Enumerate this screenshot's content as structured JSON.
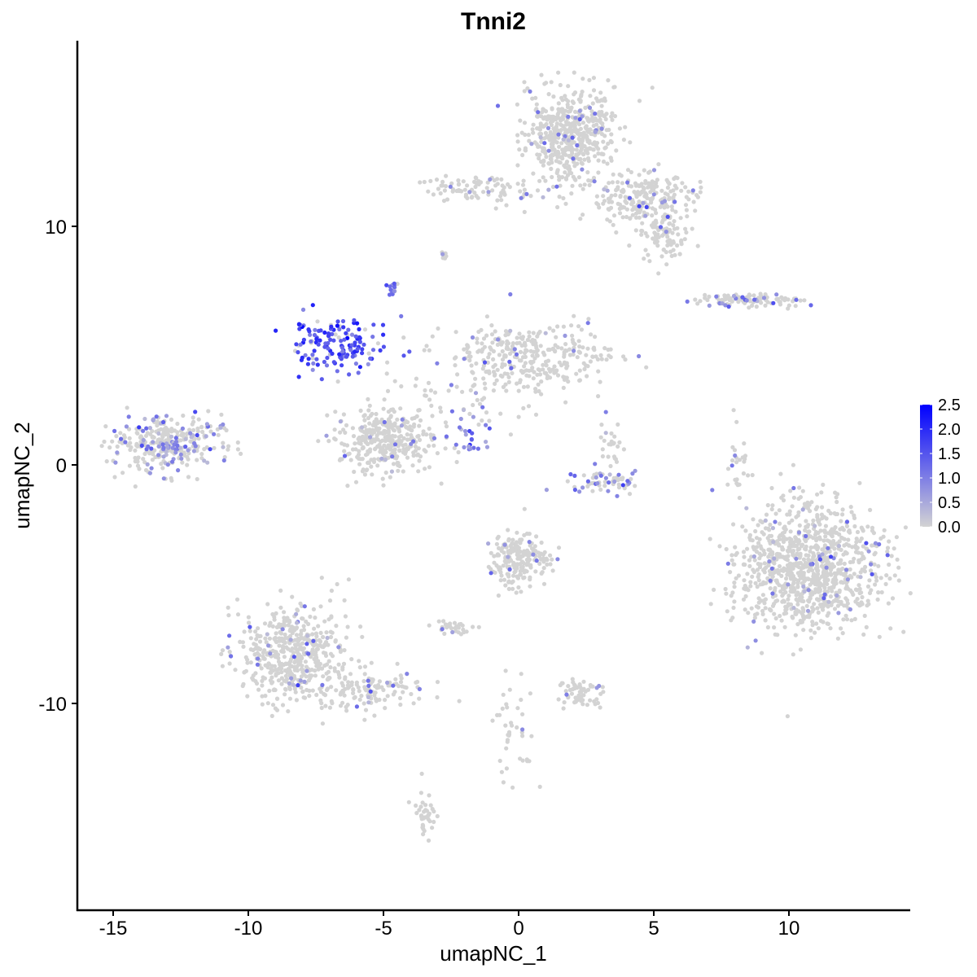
{
  "chart_data": {
    "type": "scatter",
    "title": "Tnni2",
    "xlabel": "umapNC_1",
    "ylabel": "umapNC_2",
    "xlim": [
      -16.3,
      14.4
    ],
    "ylim": [
      -18.5,
      17.8
    ],
    "xticks": [
      -15,
      -10,
      -5,
      0,
      5,
      10
    ],
    "yticks": [
      -10,
      0,
      10
    ],
    "xtick_labels": [
      "-15",
      "-10",
      "-5",
      "0",
      "5",
      "10"
    ],
    "ytick_labels": [
      "-10",
      "0",
      "10"
    ],
    "grid": false,
    "color_low": "#D3D3D3",
    "color_high": "#0000FF",
    "legend": {
      "placement": "right",
      "range": [
        0,
        2.5
      ],
      "ticks": [
        "0.0",
        "0.5",
        "1.0",
        "1.5",
        "2.0",
        "2.5"
      ]
    },
    "clusters": [
      {
        "center": [
          1.9,
          13.8
        ],
        "sd": [
          0.8,
          1.0
        ],
        "n": 520,
        "expr_frac": 0.06,
        "expr_mean": 0.8
      },
      {
        "center": [
          4.6,
          11.2
        ],
        "sd": [
          0.9,
          0.6
        ],
        "n": 220,
        "expr_frac": 0.06,
        "expr_mean": 0.8
      },
      {
        "center": [
          5.4,
          9.6
        ],
        "sd": [
          0.5,
          0.5
        ],
        "n": 90,
        "expr_frac": 0.06,
        "expr_mean": 0.8
      },
      {
        "center": [
          -1.5,
          11.6
        ],
        "sd": [
          1.0,
          0.3
        ],
        "n": 90,
        "expr_frac": 0.06,
        "expr_mean": 0.8
      },
      {
        "center": [
          -13.0,
          0.9
        ],
        "sd": [
          1.0,
          0.6
        ],
        "n": 330,
        "expr_frac": 0.25,
        "expr_mean": 0.8
      },
      {
        "center": [
          -6.6,
          5.0
        ],
        "sd": [
          0.9,
          0.6
        ],
        "n": 150,
        "expr_frac": 0.85,
        "expr_mean": 1.6
      },
      {
        "center": [
          -4.6,
          7.3
        ],
        "sd": [
          0.15,
          0.2
        ],
        "n": 15,
        "expr_frac": 0.8,
        "expr_mean": 1.0
      },
      {
        "center": [
          -4.9,
          1.0
        ],
        "sd": [
          0.9,
          0.7
        ],
        "n": 340,
        "expr_frac": 0.03,
        "expr_mean": 0.8
      },
      {
        "center": [
          0.6,
          4.5
        ],
        "sd": [
          1.6,
          0.7
        ],
        "n": 300,
        "expr_frac": 0.05,
        "expr_mean": 0.8
      },
      {
        "center": [
          -1.9,
          1.3
        ],
        "sd": [
          0.5,
          0.4
        ],
        "n": 25,
        "expr_frac": 0.9,
        "expr_mean": 1.0
      },
      {
        "center": [
          10.7,
          -4.3
        ],
        "sd": [
          1.3,
          1.3
        ],
        "n": 1000,
        "expr_frac": 0.05,
        "expr_mean": 0.8
      },
      {
        "center": [
          -8.3,
          -8.0
        ],
        "sd": [
          1.0,
          1.1
        ],
        "n": 500,
        "expr_frac": 0.05,
        "expr_mean": 0.8
      },
      {
        "center": [
          -5.5,
          -9.5
        ],
        "sd": [
          1.0,
          0.4
        ],
        "n": 120,
        "expr_frac": 0.08,
        "expr_mean": 0.8
      },
      {
        "center": [
          0.0,
          -4.0
        ],
        "sd": [
          0.6,
          0.6
        ],
        "n": 200,
        "expr_frac": 0.04,
        "expr_mean": 0.8
      },
      {
        "center": [
          3.2,
          -0.7
        ],
        "sd": [
          0.7,
          0.2
        ],
        "n": 60,
        "expr_frac": 0.4,
        "expr_mean": 1.0
      },
      {
        "center": [
          3.4,
          0.7
        ],
        "sd": [
          0.3,
          0.4
        ],
        "n": 25,
        "expr_frac": 0.05,
        "expr_mean": 0.8
      },
      {
        "center": [
          8.5,
          6.9
        ],
        "sd": [
          1.0,
          0.15
        ],
        "n": 110,
        "expr_frac": 0.15,
        "expr_mean": 0.9
      },
      {
        "center": [
          2.2,
          -9.5
        ],
        "sd": [
          0.4,
          0.3
        ],
        "n": 60,
        "expr_frac": 0.05,
        "expr_mean": 0.8
      },
      {
        "center": [
          -3.5,
          -14.6
        ],
        "sd": [
          0.2,
          0.5
        ],
        "n": 40,
        "expr_frac": 0.05,
        "expr_mean": 0.8
      },
      {
        "center": [
          -2.5,
          -6.8
        ],
        "sd": [
          0.4,
          0.15
        ],
        "n": 30,
        "expr_frac": 0.1,
        "expr_mean": 0.8
      },
      {
        "center": [
          8.1,
          0.0
        ],
        "sd": [
          0.2,
          0.8
        ],
        "n": 25,
        "expr_frac": 0.1,
        "expr_mean": 0.8
      },
      {
        "center": [
          -0.3,
          -11.0
        ],
        "sd": [
          0.4,
          1.2
        ],
        "n": 40,
        "expr_frac": 0.05,
        "expr_mean": 0.8
      },
      {
        "center": [
          -2.7,
          8.8
        ],
        "sd": [
          0.1,
          0.1
        ],
        "n": 8,
        "expr_frac": 0.3,
        "expr_mean": 0.8
      },
      {
        "center": [
          -1.9,
          3.0
        ],
        "sd": [
          1.4,
          0.9
        ],
        "n": 70,
        "expr_frac": 0.05,
        "expr_mean": 0.8
      }
    ]
  }
}
